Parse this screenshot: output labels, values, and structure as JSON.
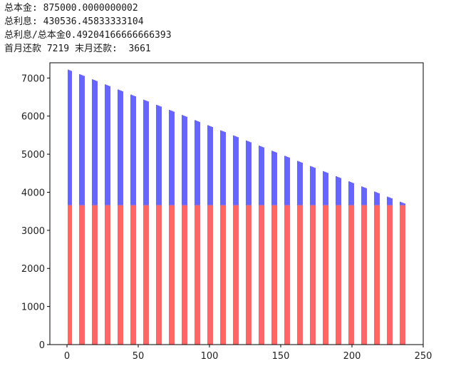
{
  "header": {
    "line1": "总本金: 875000.0000000002",
    "line2": "总利息: 430536.45833333104",
    "line3": "总利息/总本金0.49204166666666393",
    "line4": "首月还款 7219 末月还款:  3661"
  },
  "chart_data": {
    "type": "bar",
    "stacked": true,
    "title": "",
    "xlabel": "",
    "ylabel": "",
    "xlim": [
      -12,
      250
    ],
    "ylim": [
      0,
      7400
    ],
    "xticks": [
      0,
      50,
      100,
      150,
      200,
      250
    ],
    "yticks": [
      0,
      1000,
      2000,
      3000,
      4000,
      5000,
      6000,
      7000
    ],
    "x_range": [
      1,
      240
    ],
    "bars_per_group": 4,
    "group_period": 9,
    "series": [
      {
        "name": "",
        "color": "#ff0000",
        "constant_value": 3661
      },
      {
        "name": "",
        "color": "#0000ff",
        "first_total": 7219,
        "last_total": 3661
      }
    ],
    "grid": false
  }
}
